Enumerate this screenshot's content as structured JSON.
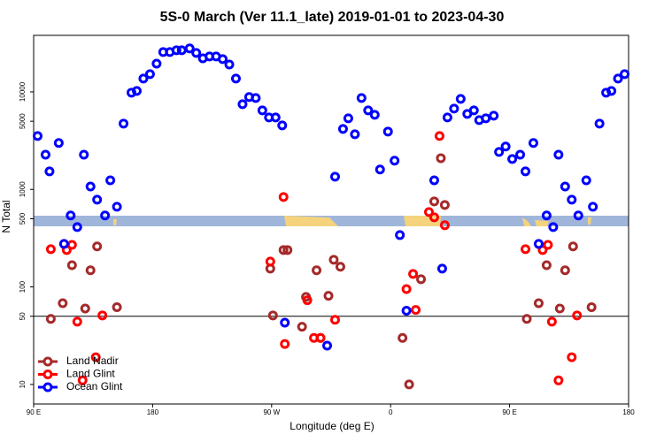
{
  "chart_data": {
    "type": "scatter",
    "title": "5S-0 March (Ver 11.1_late)   2019-01-01 to 2023-04-30",
    "xlabel": "Longitude (deg E)",
    "ylabel": "N Total",
    "xlim": [
      90,
      540
    ],
    "ylim": [
      6.3,
      38000
    ],
    "ylog": true,
    "xticks": [
      {
        "value": 90,
        "label": "90 E"
      },
      180,
      {
        "value": 270,
        "label": "90 W"
      },
      {
        "value": 360,
        "label": "0"
      },
      {
        "value": 450,
        "label": "90 E"
      },
      {
        "value": 540,
        "label": "180"
      }
    ],
    "yticks": [
      10,
      50,
      100,
      500,
      1000,
      5000,
      10000
    ],
    "hline": 50,
    "legend": "bottom-left",
    "series": [
      {
        "name": "Land Nadir",
        "color": "#a52a2a",
        "x": [
          103,
          112,
          119,
          129,
          133,
          138,
          153,
          269,
          271,
          279,
          282,
          293,
          296,
          304,
          307,
          313,
          317,
          322,
          369,
          374,
          383,
          393,
          398,
          401,
          463,
          472,
          478,
          488,
          492,
          498,
          512
        ],
        "values": [
          47,
          68,
          167,
          60,
          148,
          260,
          62,
          154,
          51,
          239,
          239,
          39,
          79,
          148,
          30,
          81,
          190,
          161,
          30,
          10,
          120,
          753,
          2090,
          692,
          47,
          68,
          167,
          60,
          148,
          260,
          62
        ]
      },
      {
        "name": "Land Glint",
        "color": "#ff0000",
        "x": [
          103,
          115,
          119,
          123,
          127,
          137,
          142,
          269,
          279,
          280,
          297,
          302,
          307,
          318,
          372,
          377,
          379,
          389,
          393,
          397,
          401,
          462,
          475,
          479,
          482,
          487,
          497,
          501
        ],
        "values": [
          244,
          239,
          270,
          44,
          11,
          19,
          51,
          182,
          836,
          26,
          73,
          30,
          30,
          46,
          95,
          136,
          58,
          586,
          517,
          3530,
          429,
          244,
          239,
          270,
          44,
          11,
          19,
          51
        ]
      },
      {
        "name": "Ocean Glint",
        "color": "#0000ff",
        "x": [
          93,
          99,
          102,
          109,
          113,
          118,
          123,
          128,
          133,
          138,
          144,
          148,
          153,
          158,
          164,
          168,
          173,
          178,
          183,
          188,
          193,
          198,
          202,
          208,
          213,
          218,
          223,
          228,
          233,
          238,
          243,
          248,
          253,
          258,
          263,
          268,
          273,
          278,
          280,
          312,
          318,
          324,
          328,
          333,
          338,
          343,
          348,
          352,
          358,
          363,
          367,
          372,
          393,
          399,
          403,
          408,
          413,
          418,
          423,
          427,
          432,
          438,
          442,
          447,
          452,
          458,
          462,
          468,
          472,
          478,
          483,
          487,
          492,
          497,
          502,
          508,
          513,
          518,
          523,
          527,
          532,
          537
        ],
        "values": [
          3530,
          2270,
          1530,
          2990,
          276,
          540,
          411,
          2270,
          1070,
          785,
          540,
          1240,
          664,
          4730,
          9820,
          10230,
          13700,
          15200,
          19500,
          25600,
          25600,
          26700,
          26700,
          27900,
          25100,
          22100,
          23100,
          23100,
          21700,
          19100,
          13700,
          7480,
          8850,
          8660,
          6460,
          5470,
          5470,
          4530,
          43,
          25,
          1350,
          4170,
          5360,
          3680,
          8660,
          6460,
          5820,
          1600,
          3920,
          1970,
          340,
          57,
          1240,
          154,
          5470,
          6740,
          8480,
          5950,
          6460,
          5140,
          5360,
          5700,
          2420,
          2750,
          2050,
          2270,
          1530,
          2990,
          276,
          540,
          411,
          2270,
          1070,
          785,
          540,
          1240,
          664,
          4730,
          9820,
          10230,
          13700,
          15200
        ]
      }
    ]
  }
}
